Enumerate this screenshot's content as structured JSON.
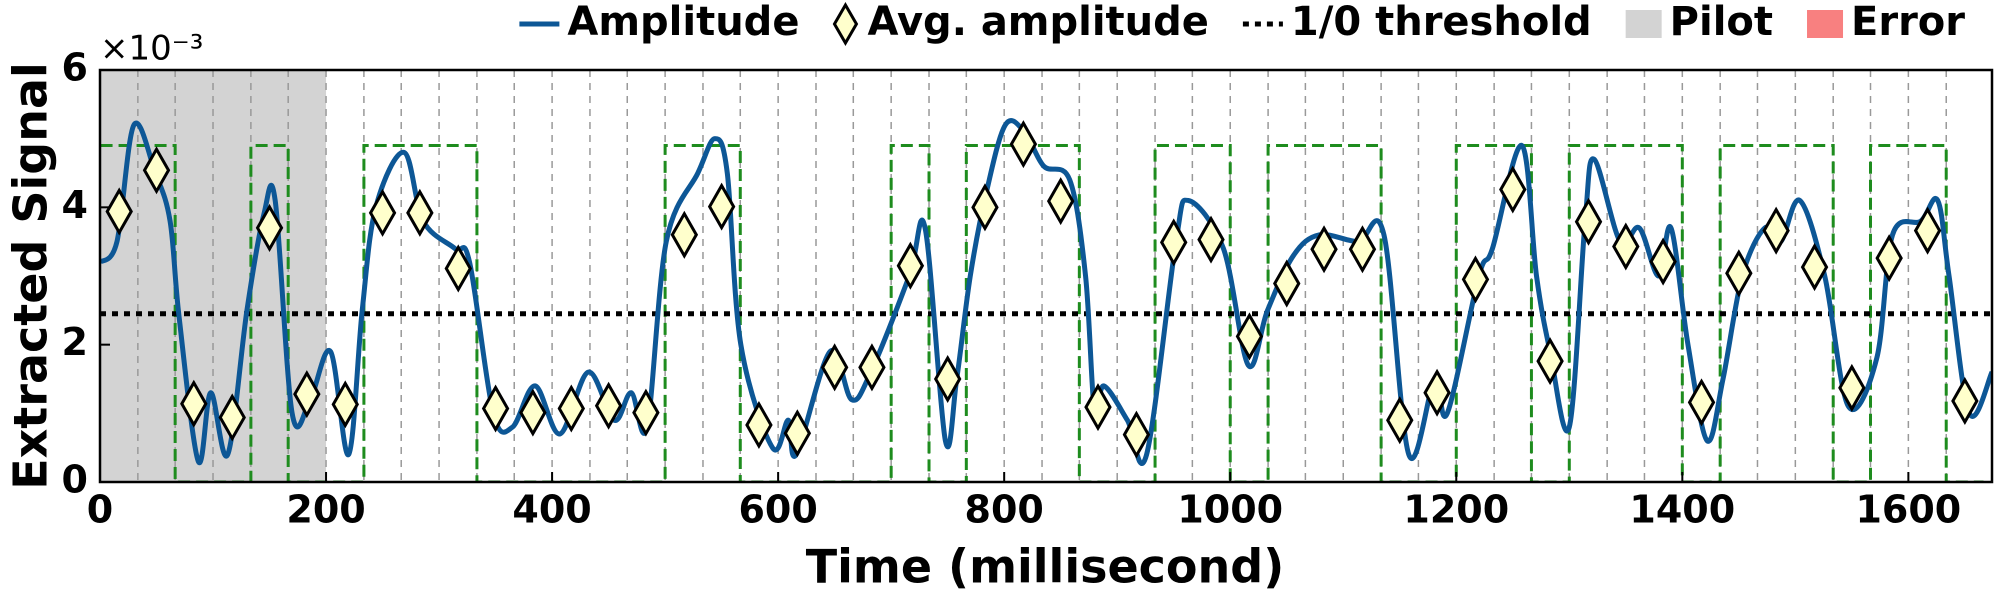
{
  "chart_data": {
    "type": "line",
    "y_label": "Extracted Signal",
    "x_label": "Time (millisecond)",
    "y_offset_label": "×10⁻³",
    "xlim": [
      0,
      1674
    ],
    "ylim": [
      0,
      6
    ],
    "xticks": [
      0,
      200,
      400,
      600,
      800,
      1000,
      1200,
      1400,
      1600
    ],
    "yticks": [
      0,
      2,
      4,
      6
    ],
    "series": [
      {
        "name": "Amplitude",
        "color": "#0d5796",
        "x": [
          0,
          15,
          30,
          49,
          62,
          70,
          87,
          98,
          113,
          130,
          145,
          155,
          170,
          186,
          204,
          220,
          232,
          244,
          269,
          286,
          314,
          327,
          348,
          365,
          385,
          407,
          432,
          455,
          470,
          484,
          501,
          529,
          544,
          555,
          567,
          595,
          609,
          616,
          646,
          665,
          682,
          716,
          730,
          748,
          758,
          770,
          784,
          801,
          818,
          835,
          858,
          872,
          880,
          888,
          909,
          926,
          952,
          963,
          994,
          1016,
          1033,
          1056,
          1079,
          1113,
          1136,
          1158,
          1181,
          1192,
          1220,
          1232,
          1258,
          1271,
          1283,
          1300,
          1314,
          1322,
          1345,
          1362,
          1379,
          1390,
          1405,
          1422,
          1436,
          1453,
          1473,
          1487,
          1504,
          1526,
          1547,
          1572,
          1586,
          1611,
          1626,
          1636,
          1654,
          1674
        ],
        "values": [
          3.2,
          3.5,
          5.2,
          4.5,
          3.8,
          2.4,
          0.3,
          1.3,
          0.4,
          2.5,
          3.9,
          4.1,
          1.0,
          1.2,
          1.9,
          0.4,
          2.5,
          4.0,
          4.8,
          3.8,
          3.4,
          3.2,
          1.0,
          0.8,
          1.4,
          0.7,
          1.6,
          0.9,
          1.3,
          0.8,
          3.5,
          4.5,
          5.0,
          4.5,
          2.0,
          0.5,
          0.9,
          0.4,
          1.9,
          1.2,
          1.6,
          3.0,
          3.7,
          0.6,
          1.5,
          3.0,
          4.2,
          5.2,
          5.1,
          4.6,
          4.4,
          3.0,
          1.0,
          1.4,
          0.9,
          0.4,
          3.5,
          4.1,
          3.4,
          1.7,
          2.5,
          3.3,
          3.6,
          3.5,
          3.6,
          0.4,
          1.5,
          1.0,
          3.0,
          3.4,
          4.9,
          3.0,
          1.9,
          0.8,
          3.8,
          4.7,
          3.5,
          3.7,
          3.0,
          3.7,
          2.0,
          0.6,
          1.5,
          3.0,
          3.7,
          3.5,
          4.1,
          3.0,
          1.1,
          1.8,
          3.6,
          3.8,
          4.1,
          3.0,
          1.0,
          1.6
        ]
      },
      {
        "name": "Avg. amplitude",
        "color": "#ffffcc",
        "x": [
          17,
          50,
          83,
          117,
          150,
          183,
          217,
          250,
          283,
          317,
          350,
          383,
          417,
          450,
          483,
          517,
          550,
          583,
          617,
          650,
          683,
          717,
          750,
          783,
          817,
          850,
          883,
          917,
          950,
          983,
          1017,
          1050,
          1083,
          1117,
          1150,
          1183,
          1217,
          1250,
          1283,
          1317,
          1350,
          1383,
          1417,
          1450,
          1483,
          1517,
          1550,
          1583,
          1617,
          1650
        ],
        "values": [
          3.94,
          4.54,
          1.14,
          0.94,
          3.7,
          1.28,
          1.13,
          3.92,
          3.92,
          3.11,
          1.07,
          1.01,
          1.07,
          1.11,
          1.01,
          3.6,
          4.01,
          0.83,
          0.71,
          1.67,
          1.67,
          3.15,
          1.5,
          4.0,
          4.92,
          4.09,
          1.09,
          0.69,
          3.49,
          3.53,
          2.12,
          2.89,
          3.39,
          3.39,
          0.9,
          1.3,
          2.95,
          4.26,
          1.76,
          3.79,
          3.43,
          3.21,
          1.16,
          3.04,
          3.66,
          3.13,
          1.37,
          3.26,
          3.66,
          1.18
        ]
      }
    ],
    "threshold": {
      "name": "1/0 threshold",
      "value": 2.45,
      "color": "#000000"
    },
    "pilot": {
      "name": "Pilot",
      "x": [
        0,
        200
      ],
      "color": "#d3d3d3"
    },
    "error": {
      "name": "Error",
      "color": "#f88080"
    },
    "decoded_bits": {
      "color": "#1e8c1e",
      "high": 4.9,
      "values": [
        1,
        1,
        0,
        0,
        1,
        0,
        0,
        1,
        1,
        1,
        0,
        0,
        0,
        0,
        0,
        1,
        1,
        0,
        0,
        0,
        0,
        1,
        0,
        1,
        1,
        1,
        0,
        0,
        1,
        1,
        0,
        1,
        1,
        1,
        0,
        0,
        1,
        1,
        0,
        1,
        1,
        1,
        0,
        1,
        1,
        1,
        0,
        1,
        1,
        0
      ]
    }
  }
}
